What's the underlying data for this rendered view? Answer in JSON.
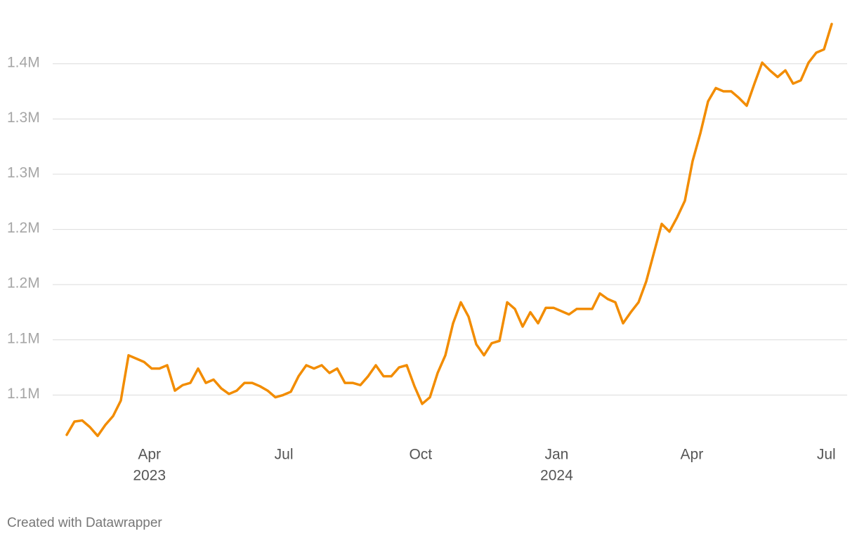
{
  "chart_data": {
    "type": "line",
    "color": "#f28c00",
    "grid": true,
    "xlim": [
      0,
      99
    ],
    "xticks": [
      {
        "value": 10.7,
        "label": "Apr",
        "sublabel": "2023"
      },
      {
        "value": 28.1,
        "label": "Jul"
      },
      {
        "value": 45.8,
        "label": "Oct"
      },
      {
        "value": 63.4,
        "label": "Jan",
        "sublabel": "2024"
      },
      {
        "value": 80.9,
        "label": "Apr"
      },
      {
        "value": 98.3,
        "label": "Jul"
      }
    ],
    "ylim": [
      1007000,
      1395000
    ],
    "yticks": [
      {
        "value": 1050000,
        "label": "1.1M"
      },
      {
        "value": 1100000,
        "label": "1.1M"
      },
      {
        "value": 1150000,
        "label": "1.2M"
      },
      {
        "value": 1200000,
        "label": "1.2M"
      },
      {
        "value": 1250000,
        "label": "1.3M"
      },
      {
        "value": 1300000,
        "label": "1.3M"
      },
      {
        "value": 1350000,
        "label": "1.4M"
      }
    ],
    "values": [
      1014000,
      1026000,
      1027000,
      1021000,
      1013000,
      1023000,
      1031000,
      1045000,
      1086000,
      1083000,
      1080000,
      1074000,
      1074000,
      1077000,
      1054000,
      1059000,
      1061000,
      1074000,
      1061000,
      1064000,
      1056000,
      1051000,
      1054000,
      1061000,
      1061000,
      1058000,
      1054000,
      1048000,
      1050000,
      1053000,
      1067000,
      1077000,
      1074000,
      1077000,
      1070000,
      1074000,
      1061000,
      1061000,
      1059000,
      1067000,
      1077000,
      1067000,
      1067000,
      1075000,
      1077000,
      1058000,
      1042000,
      1048000,
      1070000,
      1086000,
      1115000,
      1134000,
      1121000,
      1096000,
      1086000,
      1097000,
      1099000,
      1134000,
      1128000,
      1112000,
      1125000,
      1115000,
      1129000,
      1129000,
      1126000,
      1123000,
      1128000,
      1128000,
      1128000,
      1142000,
      1137000,
      1134000,
      1115000,
      1125000,
      1134000,
      1153000,
      1179000,
      1205000,
      1198000,
      1211000,
      1226000,
      1262000,
      1287000,
      1316000,
      1328000,
      1325000,
      1325000,
      1319000,
      1312000,
      1332000,
      1351000,
      1344000,
      1338000,
      1344000,
      1332000,
      1335000,
      1351000,
      1360000,
      1363000,
      1386000
    ]
  },
  "footer": "Created with Datawrapper"
}
